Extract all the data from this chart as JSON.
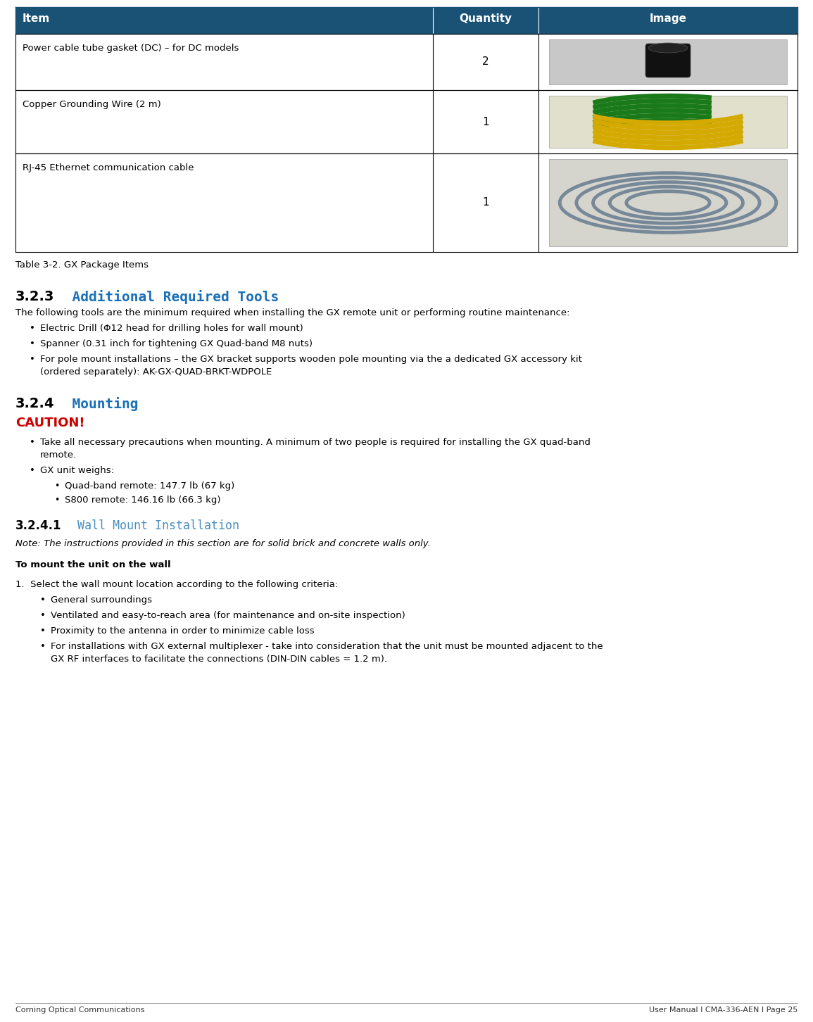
{
  "bg_color": "#ffffff",
  "header_bg": "#1a5276",
  "header_text_color": "#ffffff",
  "table_border_color": "#000000",
  "table_caption": "Table 3-2. GX Package Items",
  "table_rows": [
    {
      "item": "Power cable tube gasket (DC) – for DC models",
      "qty": "2",
      "img_desc": "black_gasket"
    },
    {
      "item": "Copper Grounding Wire (2 m)",
      "qty": "1",
      "img_desc": "yellow_green_wire"
    },
    {
      "item": "RJ-45 Ethernet communication cable",
      "qty": "1",
      "img_desc": "ethernet_cable"
    }
  ],
  "section_323_num": "3.2.3",
  "section_323_title": "  Additional Required Tools",
  "section_323_intro": "The following tools are the minimum required when installing the GX remote unit or performing routine maintenance:",
  "section_323_bullets": [
    "Electric Drill (Φ12 head for drilling holes for wall mount)",
    "Spanner (0.31 inch for tightening GX Quad-band M8 nuts)",
    "For pole mount installations – the GX bracket supports wooden pole mounting via the a dedicated GX accessory kit",
    "(ordered separately): AK-GX-QUAD-BRKT-WDPOLE"
  ],
  "section_324_num": "3.2.4",
  "section_324_title": "  Mounting",
  "caution_label": "CAUTION!",
  "section_324_bullet1": "Take all necessary precautions when mounting. A minimum of two people is required for installing the GX quad-band",
  "section_324_bullet1b": "remote.",
  "section_324_bullet2": "GX unit weighs:",
  "section_324_sub1": "Quad-band remote: 147.7 lb (67 kg)",
  "section_324_sub2": "S800 remote: 146.16 lb (66.3 kg)",
  "section_3241_num": "3.2.4.1",
  "section_3241_title": " Wall Mount Installation",
  "note_text": "Note: The instructions provided in this section are for solid brick and concrete walls only.",
  "to_mount_bold": "To mount the unit on the wall",
  "step1_text": "1.  Select the wall mount location according to the following criteria:",
  "step1_b1": "General surroundings",
  "step1_b2": "Ventilated and easy-to-reach area (for maintenance and on-site inspection)",
  "step1_b3": "Proximity to the antenna in order to minimize cable loss",
  "step1_b4a": "For installations with GX external multiplexer - take into consideration that the unit must be mounted adjacent to the",
  "step1_b4b": "GX RF interfaces to facilitate the connections (DIN-DIN cables = 1.2 m).",
  "footer_left": "Corning Optical Communications",
  "footer_right": "User Manual I CMA-336-AEN I Page 25",
  "section_title_color": "#1a70b8",
  "mono_color": "#4a8fc0",
  "caution_color": "#cc0000"
}
